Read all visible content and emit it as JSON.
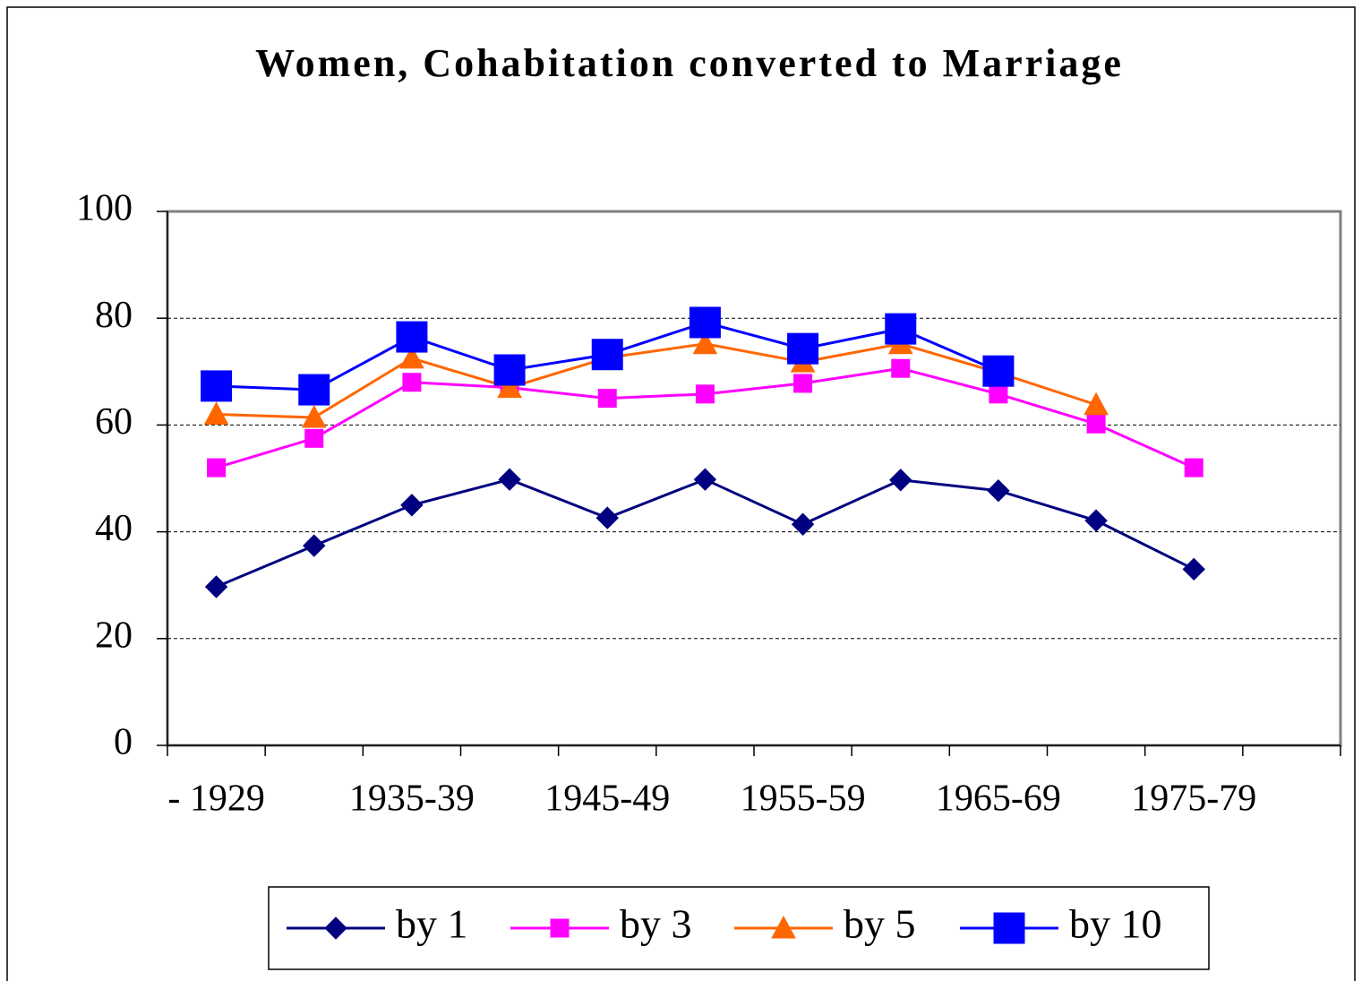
{
  "chart_data": {
    "type": "line",
    "title": "Women, Cohabitation converted to Marriage",
    "categories": [
      "- 1929",
      null,
      "1935-39",
      null,
      "1945-49",
      null,
      "1955-59",
      null,
      "1965-69",
      null,
      "1975-79",
      null
    ],
    "series": [
      {
        "name": "by 1",
        "color": "#000080",
        "marker": "diamond",
        "values": [
          29.7,
          37.4,
          45,
          49.8,
          42.6,
          49.8,
          41.4,
          49.7,
          47.7,
          42.1,
          33,
          null
        ]
      },
      {
        "name": "by 3",
        "color": "#ff00ff",
        "marker": "square",
        "values": [
          52,
          57.5,
          68,
          67,
          65,
          65.8,
          67.8,
          70.6,
          65.8,
          60.2,
          52,
          null
        ]
      },
      {
        "name": "by 5",
        "color": "#ff6600",
        "marker": "triangle",
        "values": [
          62,
          61.4,
          72.5,
          67,
          72.6,
          75.2,
          71.8,
          75.2,
          69.8,
          63.8,
          null,
          null
        ]
      },
      {
        "name": "by 10",
        "color": "#0000ff",
        "marker": "big-square",
        "values": [
          67.3,
          66.6,
          76.5,
          70.3,
          73.2,
          79.2,
          74.3,
          78,
          70.1,
          null,
          null,
          null
        ]
      }
    ],
    "ylim": [
      0,
      100
    ],
    "yticks": [
      0,
      20,
      40,
      60,
      80,
      100
    ],
    "grid": true,
    "legend": "bottom"
  }
}
